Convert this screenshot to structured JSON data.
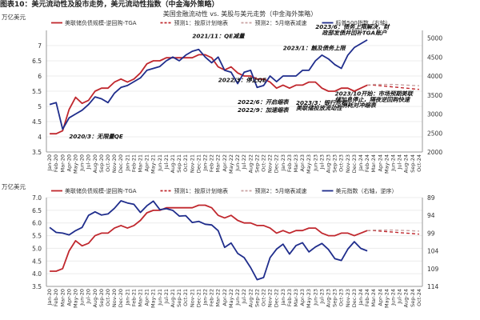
{
  "figure_caption": "图表10：美元流动性及股市走势，美元流动性指数（中金海外策略）",
  "colors": {
    "liquidity": "#c0272d",
    "index": "#1f2d8c",
    "projection": "#c0272d"
  },
  "x_labels": [
    "Jan-20",
    "Feb-20",
    "Mar-20",
    "Apr-20",
    "May-20",
    "Jun-20",
    "Jul-20",
    "Aug-20",
    "Sep-20",
    "Oct-20",
    "Nov-20",
    "Dec-20",
    "Jan-21",
    "Feb-21",
    "Mar-21",
    "Apr-21",
    "May-21",
    "Jun-21",
    "Jul-21",
    "Aug-21",
    "Sep-21",
    "Oct-21",
    "Nov-21",
    "Dec-21",
    "Jan-22",
    "Feb-22",
    "Mar-22",
    "Apr-22",
    "May-22",
    "Jun-22",
    "Jul-22",
    "Aug-22",
    "Sep-22",
    "Oct-22",
    "Nov-22",
    "Dec-22",
    "Jan-23",
    "Feb-23",
    "Mar-23",
    "Apr-23",
    "May-23",
    "Jun-23",
    "Jul-23",
    "Aug-23",
    "Sep-23",
    "Oct-23",
    "Nov-23",
    "Dec-23",
    "Jan-24",
    "Feb-24",
    "Mar-24",
    "Apr-24",
    "May-24",
    "Jun-24",
    "Jul-24",
    "Aug-24",
    "Sep-24",
    "Oct-24"
  ],
  "chart_data": [
    {
      "type": "line",
      "title": "美国金融流动性 vs. 美股与美元走势（中金海外策略）",
      "left_unit": "万亿美元",
      "ylim_left": [
        3.5,
        7.5
      ],
      "yticks_left": [
        "3.5",
        "4",
        "4.5",
        "5",
        "5.5",
        "6",
        "6.5",
        "7"
      ],
      "ylim_right": [
        2000,
        5200
      ],
      "yticks_right": [
        "2000",
        "2500",
        "3000",
        "3500",
        "4000",
        "4500",
        "5000"
      ],
      "grid": true,
      "legend": [
        {
          "name": "美联储负债规模-逆回购-TGA",
          "style": "solid",
          "color": "#c0272d"
        },
        {
          "name": "预测1：按原计划缩表",
          "style": "dashed",
          "color": "#c0272d"
        },
        {
          "name": "预测2：5月缩表减速",
          "style": "dashed",
          "color": "#c9a0a0"
        },
        {
          "name": "标普500指数（右轴）",
          "style": "solid",
          "color": "#1f2d8c"
        }
      ],
      "series": [
        {
          "name": "美联储负债规模-逆回购-TGA",
          "axis": "left",
          "values": [
            4.1,
            4.1,
            4.2,
            4.9,
            5.3,
            5.1,
            5.2,
            5.5,
            5.6,
            5.6,
            5.8,
            5.9,
            5.8,
            5.9,
            6.1,
            6.4,
            6.5,
            6.5,
            6.6,
            6.6,
            6.6,
            6.6,
            6.6,
            6.7,
            6.7,
            6.6,
            6.3,
            6.2,
            6.3,
            6.1,
            6.0,
            6.0,
            5.9,
            5.9,
            5.8,
            5.6,
            5.7,
            5.6,
            5.7,
            5.7,
            5.8,
            5.8,
            5.6,
            5.5,
            5.5,
            5.6,
            5.6,
            5.5,
            5.6,
            5.7
          ]
        },
        {
          "name": "预测1：按原计划缩表",
          "axis": "left",
          "start_index": 49,
          "values": [
            5.7,
            5.7,
            5.68,
            5.66,
            5.64,
            5.62,
            5.6,
            5.58,
            5.56
          ]
        },
        {
          "name": "预测2：5月缩表减速",
          "axis": "left",
          "start_index": 49,
          "values": [
            5.7,
            5.72,
            5.72,
            5.72,
            5.72,
            5.71,
            5.7,
            5.69,
            5.68
          ]
        },
        {
          "name": "标普500指数（右轴）",
          "axis": "right",
          "values": [
            3250,
            3300,
            2600,
            2900,
            3000,
            3100,
            3250,
            3450,
            3400,
            3300,
            3550,
            3700,
            3750,
            3850,
            3950,
            4150,
            4200,
            4250,
            4400,
            4500,
            4400,
            4550,
            4650,
            4700,
            4500,
            4350,
            4500,
            4150,
            4100,
            3800,
            4100,
            4150,
            3700,
            3750,
            4000,
            3850,
            4000,
            4000,
            4000,
            4150,
            4150,
            4400,
            4550,
            4450,
            4300,
            4200,
            4550,
            4750,
            4850,
            4950
          ]
        }
      ],
      "annotations": [
        {
          "text": "2020/3：无限量QE",
          "x_index": 3,
          "y": 3.95
        },
        {
          "text": "2021/11：QE减量",
          "x_index": 22,
          "y": 7.25
        },
        {
          "text": "2022/3：停止QE",
          "x_index": 26,
          "y": 5.8
        },
        {
          "text": "2022/6：开启缩表",
          "x_index": 29,
          "y": 5.08
        },
        {
          "text": "2022/9：加速缩表",
          "x_index": 29,
          "y": 4.82
        },
        {
          "text": "2023/1：触及债务上限",
          "x_index": 36,
          "y": 6.85
        },
        {
          "text": "2023/3：银行危机",
          "x_index": 38,
          "y": 5.05
        },
        {
          "text": "美联储投放流动性",
          "x_index": 38,
          "y": 4.88
        },
        {
          "text": "2023/6：债务上限解决，财",
          "x_index": 41,
          "y": 7.55
        },
        {
          "text": "政部发债并回补TGA账户",
          "x_index": 42,
          "y": 7.35
        },
        {
          "text": "2023/10开始：市场预期美联",
          "x_index": 44,
          "y": 5.35
        },
        {
          "text": "储加息停止，隔夜逆回购快速",
          "x_index": 44,
          "y": 5.16
        },
        {
          "text": "消耗对冲缩表",
          "x_index": 45,
          "y": 4.97
        }
      ]
    },
    {
      "type": "line",
      "title": "",
      "left_unit": "万亿美元",
      "ylim_left": [
        3.5,
        7.0
      ],
      "yticks_left": [
        "3.5",
        "4.0",
        "4.5",
        "5.0",
        "5.5",
        "6.0",
        "6.5",
        "7.0"
      ],
      "ylim_right": [
        89,
        114
      ],
      "right_inverted": true,
      "yticks_right": [
        "89",
        "94",
        "99",
        "104",
        "109",
        "114"
      ],
      "grid": true,
      "legend": [
        {
          "name": "美联储负债规模-逆回购-TGA",
          "style": "solid",
          "color": "#c0272d"
        },
        {
          "name": "预测1：按原计划缩表",
          "style": "dashed",
          "color": "#c0272d"
        },
        {
          "name": "预测2：5月缩表减速",
          "style": "dashed",
          "color": "#c9a0a0"
        },
        {
          "name": "美元指数（右轴，逆序）",
          "style": "solid",
          "color": "#1f2d8c"
        }
      ],
      "series": [
        {
          "name": "美联储负债规模-逆回购-TGA",
          "axis": "left",
          "values": [
            4.1,
            4.1,
            4.2,
            4.9,
            5.3,
            5.1,
            5.2,
            5.5,
            5.6,
            5.6,
            5.8,
            5.9,
            5.8,
            5.9,
            6.1,
            6.4,
            6.5,
            6.5,
            6.6,
            6.6,
            6.6,
            6.6,
            6.6,
            6.7,
            6.7,
            6.6,
            6.3,
            6.2,
            6.3,
            6.1,
            6.0,
            6.0,
            5.9,
            5.9,
            5.8,
            5.6,
            5.7,
            5.6,
            5.7,
            5.7,
            5.8,
            5.8,
            5.6,
            5.5,
            5.5,
            5.6,
            5.6,
            5.5,
            5.6,
            5.7
          ]
        },
        {
          "name": "预测1：按原计划缩表",
          "axis": "left",
          "start_index": 49,
          "values": [
            5.7,
            5.7,
            5.68,
            5.66,
            5.64,
            5.62,
            5.6,
            5.58,
            5.56
          ]
        },
        {
          "name": "预测2：5月缩表减速",
          "axis": "left",
          "start_index": 49,
          "values": [
            5.7,
            5.72,
            5.72,
            5.72,
            5.72,
            5.71,
            5.7,
            5.69,
            5.68
          ]
        },
        {
          "name": "美元指数（右轴，逆序）",
          "axis": "right",
          "values": [
            97.4,
            98.8,
            99.0,
            99.5,
            98.3,
            97.4,
            94.0,
            93.0,
            93.9,
            93.6,
            92.0,
            89.9,
            90.5,
            90.9,
            93.2,
            91.3,
            90.0,
            92.4,
            92.1,
            92.6,
            94.2,
            94.1,
            96.0,
            95.7,
            96.5,
            96.7,
            98.3,
            103.0,
            101.8,
            104.7,
            105.9,
            108.7,
            112.1,
            111.5,
            105.9,
            103.5,
            102.1,
            104.9,
            102.5,
            101.7,
            104.3,
            102.9,
            101.9,
            103.6,
            106.2,
            106.7,
            103.5,
            101.4,
            103.3,
            104.0
          ]
        }
      ],
      "annotations": []
    }
  ]
}
